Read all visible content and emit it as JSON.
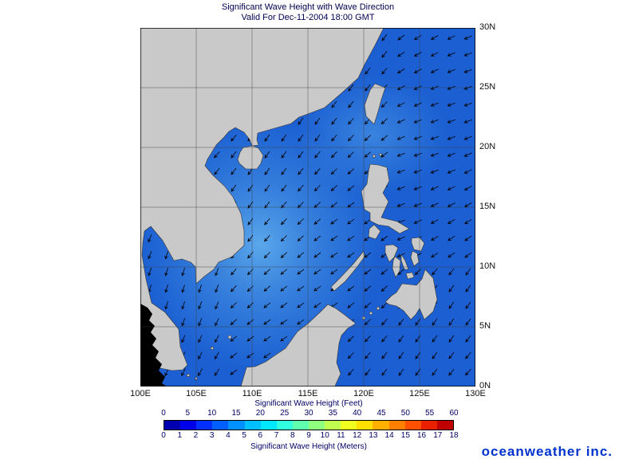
{
  "title": {
    "line1": "Significant Wave Height with Wave Direction",
    "line2": "Valid For Dec-11-2004 18:00 GMT"
  },
  "map": {
    "lon_labels": [
      "100E",
      "105E",
      "110E",
      "115E",
      "120E",
      "125E",
      "130E"
    ],
    "lat_labels": [
      "30N",
      "25N",
      "20N",
      "15N",
      "10N",
      "5N",
      "0N"
    ],
    "ocean_color": "#1b5fd2",
    "land_color": "#c9c9c9",
    "arrows": {
      "spacing": 21,
      "length": 10,
      "color": "#000000"
    }
  },
  "colorbar": {
    "feet_caption": "Significant Wave Height (Feet)",
    "meters_caption": "Significant Wave Height (Meters)",
    "feet_ticks": [
      "0",
      "5",
      "10",
      "15",
      "20",
      "25",
      "30",
      "35",
      "40",
      "45",
      "50",
      "55",
      "60"
    ],
    "meters_ticks": [
      "0",
      "1",
      "2",
      "3",
      "4",
      "5",
      "6",
      "7",
      "8",
      "9",
      "10",
      "11",
      "12",
      "13",
      "14",
      "15",
      "16",
      "17",
      "18"
    ],
    "colors": [
      "#0000b0",
      "#0000e8",
      "#0030ff",
      "#0060ff",
      "#0090ff",
      "#00c0ff",
      "#00e8ff",
      "#30ffe0",
      "#60ffb0",
      "#90ff80",
      "#c0ff50",
      "#f0ff20",
      "#ffe000",
      "#ffb000",
      "#ff8000",
      "#ff5000",
      "#e82000",
      "#c00000"
    ]
  },
  "logo": {
    "text": "oceanweather inc.",
    "color": "#0033cc"
  },
  "chart_data": {
    "type": "heatmap",
    "title": "Significant Wave Height with Wave Direction",
    "subtitle": "Valid For Dec-11-2004 18:00 GMT",
    "region": {
      "lon_min": "100E",
      "lon_max": "130E",
      "lat_min": "0N",
      "lat_max": "30N",
      "grid_interval_deg": 5
    },
    "colorbar_feet": [
      0,
      5,
      10,
      15,
      20,
      25,
      30,
      35,
      40,
      45,
      50,
      55,
      60
    ],
    "colorbar_meters": [
      0,
      1,
      2,
      3,
      4,
      5,
      6,
      7,
      8,
      9,
      10,
      11,
      12,
      13,
      14,
      15,
      16,
      17,
      18
    ],
    "overlay": "wave direction arrows pointing predominantly toward the southwest"
  }
}
